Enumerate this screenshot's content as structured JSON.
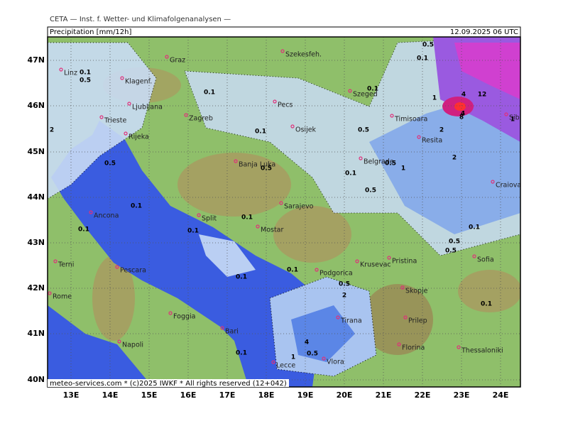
{
  "header": {
    "agency": "CETA — Inst. f. Wetter- und Klimafolgenanalysen —",
    "title": "Precipitation [mm/12h]",
    "datetime": "12.09.2025 06 UTC"
  },
  "footer": "meteo-services.com * (c)2025 IWKF * All rights reserved (12+042)",
  "lat_labels": [
    "47N",
    "46N",
    "45N",
    "44N",
    "43N",
    "42N",
    "41N",
    "40N"
  ],
  "lon_labels": [
    "13E",
    "14E",
    "15E",
    "16E",
    "17E",
    "18E",
    "19E",
    "20E",
    "21E",
    "22E",
    "23E",
    "24E"
  ],
  "cities": [
    "Graz",
    "Szekesfeh.",
    "Linz",
    "Klagenf.",
    "Szeged",
    "Pecs",
    "Ljubljana",
    "Zagreb",
    "Trieste",
    "Timisoara",
    "Sibiu",
    "Osijek",
    "Rijeka",
    "Resita",
    "Banja Luka",
    "Belgrade",
    "Craiova",
    "Sarajevo",
    "Split",
    "Ancona",
    "Mostar",
    "Krusevac",
    "Pristina",
    "Sofia",
    "Terni",
    "Pescara",
    "Podgorica",
    "Skopje",
    "Rome",
    "Tirana",
    "Foggia",
    "Prilep",
    "Bari",
    "Napoli",
    "Florina",
    "Thessaloniki",
    "Vlora",
    "Lecce"
  ],
  "contour_labels": [
    0.5,
    0.1,
    1,
    0.5,
    0.1,
    0.1,
    2,
    0.1,
    0.5,
    0.1,
    0.5,
    0.5,
    1,
    12,
    4,
    2,
    0.5,
    2,
    0.1,
    0.5,
    0.1,
    0.1,
    0.1,
    0.1,
    0.1,
    0.5,
    0.1,
    0.5,
    2,
    4,
    1,
    0.5,
    0.1,
    0.1,
    1,
    0.1,
    8,
    4,
    0.5
  ]
}
